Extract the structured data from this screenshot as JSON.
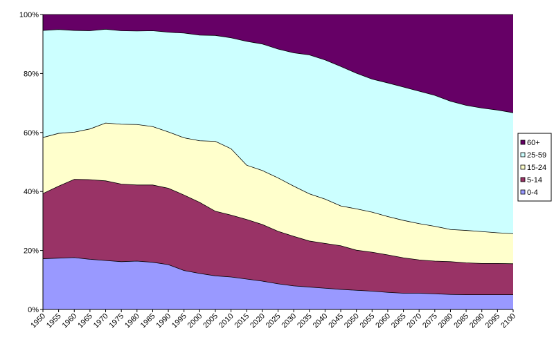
{
  "chart_data": {
    "type": "area",
    "stacked": true,
    "percent": true,
    "x": [
      1950,
      1955,
      1960,
      1965,
      1970,
      1975,
      1980,
      1985,
      1990,
      1995,
      2000,
      2005,
      2010,
      2015,
      2020,
      2025,
      2030,
      2035,
      2040,
      2045,
      2050,
      2055,
      2060,
      2065,
      2070,
      2075,
      2080,
      2085,
      2090,
      2095,
      2100
    ],
    "x_tick_labels": [
      "1950",
      "1955",
      "1960",
      "1965",
      "1970",
      "1975",
      "1980",
      "1985",
      "1990",
      "1995",
      "2000",
      "2005",
      "2010",
      "2015",
      "2020",
      "2025",
      "2030",
      "2035",
      "2040",
      "2045",
      "2050",
      "2055",
      "2060",
      "2065",
      "2070",
      "2075",
      "2080",
      "2085",
      "2090",
      "2095",
      "2100"
    ],
    "y_tick_labels": [
      "0%",
      "20%",
      "40%",
      "60%",
      "80%",
      "100%"
    ],
    "ylim": [
      0,
      100
    ],
    "grid": false,
    "legend_placement": "right",
    "series": [
      {
        "name": "0-4",
        "color": "#9999ff",
        "values": [
          17.2,
          17.4,
          17.6,
          17.0,
          16.6,
          16.2,
          16.4,
          16.0,
          15.2,
          13.2,
          12.2,
          11.4,
          11.0,
          10.3,
          9.6,
          8.7,
          8.0,
          7.6,
          7.2,
          6.8,
          6.5,
          6.2,
          5.8,
          5.5,
          5.5,
          5.3,
          5.1,
          5.0,
          5.0,
          5.0,
          5.0
        ]
      },
      {
        "name": "5-14",
        "color": "#993366",
        "values": [
          22.1,
          24.4,
          26.5,
          27.0,
          27.0,
          26.3,
          25.8,
          26.2,
          25.9,
          25.6,
          24.1,
          21.9,
          21.0,
          20.2,
          19.2,
          17.8,
          16.8,
          15.6,
          15.2,
          14.8,
          13.6,
          13.2,
          12.7,
          12.0,
          11.3,
          11.1,
          11.1,
          10.8,
          10.6,
          10.6,
          10.5
        ]
      },
      {
        "name": "15-24",
        "color": "#ffffcc",
        "values": [
          19.0,
          17.9,
          16.0,
          17.2,
          19.6,
          20.3,
          20.5,
          19.8,
          19.1,
          19.4,
          20.9,
          23.7,
          22.5,
          18.4,
          18.3,
          18.1,
          17.0,
          16.0,
          15.0,
          13.5,
          14.0,
          13.6,
          13.0,
          12.7,
          12.3,
          11.8,
          10.9,
          11.0,
          10.8,
          10.4,
          10.2
        ]
      },
      {
        "name": "25-59",
        "color": "#ccffff",
        "values": [
          36.3,
          35.2,
          34.5,
          33.3,
          31.8,
          31.7,
          31.7,
          32.5,
          33.8,
          35.5,
          35.8,
          35.9,
          37.6,
          42.0,
          42.9,
          43.7,
          45.2,
          47.1,
          47.2,
          47.3,
          46.0,
          45.1,
          45.3,
          45.2,
          44.9,
          44.4,
          43.5,
          42.4,
          41.9,
          41.6,
          41.0
        ]
      },
      {
        "name": "60+",
        "color": "#660066",
        "values": [
          5.4,
          5.1,
          5.4,
          5.5,
          5.0,
          5.5,
          5.6,
          5.5,
          6.0,
          6.3,
          7.0,
          7.1,
          7.9,
          9.1,
          10.0,
          11.7,
          13.0,
          13.7,
          15.4,
          17.6,
          19.9,
          21.9,
          23.2,
          24.6,
          26.0,
          27.4,
          29.4,
          30.8,
          31.7,
          32.4,
          33.3
        ]
      }
    ],
    "legend_order": [
      "60+",
      "25-59",
      "15-24",
      "5-14",
      "0-4"
    ]
  }
}
